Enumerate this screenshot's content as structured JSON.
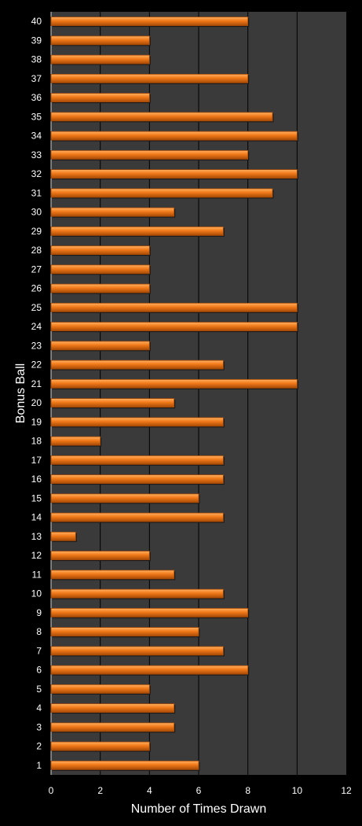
{
  "chart_data": {
    "type": "bar",
    "orientation": "horizontal",
    "xlabel": "Number of Times Drawn",
    "ylabel": "Bonus Ball",
    "xlim": [
      0,
      12
    ],
    "x_ticks": [
      "0",
      "2",
      "4",
      "6",
      "8",
      "10",
      "12"
    ],
    "grid": "vertical",
    "categories": [
      "1",
      "2",
      "3",
      "4",
      "5",
      "6",
      "7",
      "8",
      "9",
      "10",
      "11",
      "12",
      "13",
      "14",
      "15",
      "16",
      "17",
      "18",
      "19",
      "20",
      "21",
      "22",
      "23",
      "24",
      "25",
      "26",
      "27",
      "28",
      "29",
      "30",
      "31",
      "32",
      "33",
      "34",
      "35",
      "36",
      "37",
      "38",
      "39",
      "40"
    ],
    "values": [
      6,
      4,
      5,
      5,
      4,
      8,
      7,
      6,
      8,
      7,
      5,
      4,
      1,
      7,
      6,
      7,
      7,
      2,
      7,
      5,
      10,
      7,
      4,
      10,
      10,
      4,
      4,
      4,
      7,
      5,
      9,
      10,
      8,
      10,
      9,
      4,
      8,
      4,
      4,
      8
    ]
  },
  "colors": {
    "background": "#000000",
    "plot_area": "#3a3a3a",
    "gridline": "#000000",
    "bar": "#f07818",
    "bar_highlight": "#ffb060",
    "bar_shadow": "#a64a06",
    "text": "#ffffff"
  }
}
